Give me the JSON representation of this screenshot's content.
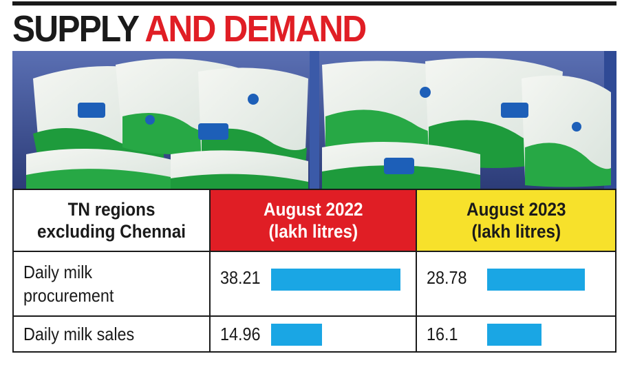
{
  "headline": {
    "part1": "SUPPLY",
    "part2": "AND DEMAND"
  },
  "photo": {
    "description_icon": "milk-packets-photo"
  },
  "colors": {
    "accent_red": "#e01e25",
    "accent_yellow": "#f7e12b",
    "bar_blue": "#1aa6e4",
    "text_dark": "#1a1a1a"
  },
  "chart_data": {
    "type": "table",
    "header": {
      "region_line1": "TN regions",
      "region_line2": "excluding Chennai",
      "col1_line1": "August 2022",
      "col1_line2": "(lakh litres)",
      "col2_line1": "August 2023",
      "col2_line2": "(lakh litres)"
    },
    "columns": [
      "August 2022",
      "August 2023"
    ],
    "rows": [
      {
        "label_line1": "Daily milk",
        "label_line2": "procurement",
        "v2022": "38.21",
        "v2023": "28.78",
        "n2022": 38.21,
        "n2023": 28.78
      },
      {
        "label_line1": "Daily milk sales",
        "label_line2": "",
        "v2022": "14.96",
        "v2023": "16.1",
        "n2022": 14.96,
        "n2023": 16.1
      }
    ]
  }
}
